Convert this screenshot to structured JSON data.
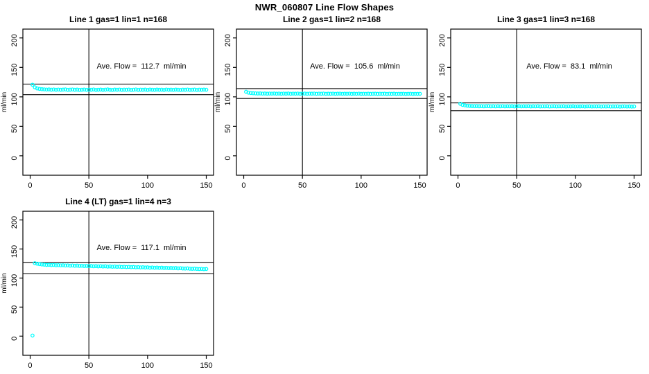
{
  "page_title": "NWR_060807  Line Flow Shapes",
  "axes": {
    "x_ticks": [
      0,
      50,
      100,
      150
    ],
    "y_ticks": [
      0,
      50,
      100,
      150,
      200
    ],
    "ylabel": "ml/min",
    "xlabel": "",
    "x_range": [
      -6.2,
      156.2
    ],
    "y_range": [
      -33,
      215
    ],
    "vline_x": 50,
    "grid": "off"
  },
  "style": {
    "point_color": "#00FFFF",
    "axis_color": "#000000",
    "background": "#FFFFFF"
  },
  "chart_data": [
    {
      "type": "scatter",
      "title": "Line 1 gas=1 lin=1 n=168",
      "annotation": "Ave. Flow =  112.7  ml/min",
      "ave_flow_ml_min": 112.7,
      "n": 168,
      "ref_lines": [
        121.7,
        103.7
      ],
      "x0": 2,
      "dx": 2,
      "y": [
        120.6,
        116.2,
        114.3,
        113.5,
        113.0,
        112.7,
        112.4,
        112.6,
        112.2,
        112.5,
        112.1,
        112.4,
        112.0,
        112.3,
        112.6,
        111.9,
        112.2,
        112.5,
        112.0,
        112.3,
        111.8,
        112.1,
        112.4,
        111.9,
        112.2,
        112.0,
        112.5,
        111.8,
        112.1,
        112.3,
        111.9,
        112.2,
        112.6,
        112.0,
        111.8,
        112.3,
        112.1,
        112.4,
        111.9,
        112.2,
        112.0,
        112.4,
        111.8,
        112.1,
        112.5,
        111.9,
        112.2,
        112.0,
        112.3,
        111.8,
        112.4,
        112.1,
        111.9,
        112.3,
        112.0,
        112.2,
        111.8,
        112.4,
        112.0,
        112.2,
        111.9,
        112.3,
        112.1,
        111.8,
        112.2,
        112.0,
        112.4,
        111.9,
        112.1,
        112.3,
        111.8,
        112.2,
        112.0,
        112.3,
        112.1
      ],
      "extra_points": []
    },
    {
      "type": "scatter",
      "title": "Line 2 gas=1 lin=2 n=168",
      "annotation": "Ave. Flow =  105.6  ml/min",
      "ave_flow_ml_min": 105.6,
      "n": 168,
      "ref_lines": [
        114.0,
        97.2
      ],
      "x0": 2,
      "dx": 2,
      "y": [
        108.6,
        107.2,
        106.5,
        106.1,
        105.9,
        105.7,
        105.8,
        105.5,
        105.7,
        105.4,
        105.6,
        105.5,
        105.7,
        105.4,
        105.6,
        105.3,
        105.6,
        105.4,
        105.7,
        105.3,
        105.5,
        105.4,
        105.6,
        105.3,
        105.5,
        105.6,
        105.3,
        105.5,
        105.4,
        105.6,
        105.2,
        105.5,
        105.3,
        105.6,
        105.2,
        105.4,
        105.3,
        105.5,
        105.2,
        105.4,
        105.5,
        105.2,
        105.4,
        105.3,
        105.5,
        105.1,
        105.4,
        105.2,
        105.5,
        105.1,
        105.3,
        105.2,
        105.4,
        105.1,
        105.3,
        105.4,
        105.1,
        105.3,
        105.2,
        105.4,
        105.0,
        105.3,
        105.1,
        105.4,
        105.0,
        105.2,
        105.1,
        105.3,
        105.0,
        105.2,
        105.3,
        105.0,
        105.2,
        105.1,
        105.2
      ],
      "extra_points": []
    },
    {
      "type": "scatter",
      "title": "Line 3 gas=1 lin=3 n=168",
      "annotation": "Ave. Flow =  83.1  ml/min",
      "ave_flow_ml_min": 83.1,
      "n": 168,
      "ref_lines": [
        89.7,
        76.5
      ],
      "x0": 2,
      "dx": 2,
      "y": [
        88.2,
        86.3,
        85.4,
        84.9,
        84.6,
        84.4,
        84.2,
        84.4,
        84.1,
        84.3,
        84.0,
        84.2,
        84.4,
        84.0,
        84.2,
        83.9,
        84.2,
        84.0,
        84.3,
        83.9,
        84.1,
        84.0,
        84.2,
        83.8,
        84.1,
        84.2,
        83.9,
        84.1,
        84.0,
        84.2,
        83.8,
        84.1,
        83.9,
        84.2,
        83.8,
        84.0,
        83.9,
        84.1,
        83.7,
        84.0,
        84.1,
        83.8,
        84.0,
        83.9,
        84.1,
        83.7,
        84.0,
        83.8,
        84.1,
        83.7,
        83.9,
        83.8,
        84.0,
        83.6,
        83.9,
        84.0,
        83.7,
        83.9,
        83.8,
        84.0,
        83.6,
        83.9,
        83.7,
        84.0,
        83.6,
        83.8,
        83.7,
        83.9,
        83.5,
        83.8,
        83.9,
        83.6,
        83.8,
        83.5,
        83.7
      ],
      "extra_points": []
    },
    {
      "type": "scatter",
      "title": "Line 4 (LT) gas=1 lin=4 n=3",
      "annotation": "Ave. Flow =  117.1  ml/min",
      "ave_flow_ml_min": 117.1,
      "n": 3,
      "ref_lines": [
        126.5,
        107.7
      ],
      "x0": 4,
      "dx": 2,
      "y": [
        125.6,
        124.7,
        124.0,
        123.4,
        123.0,
        122.6,
        122.8,
        122.3,
        122.5,
        122.0,
        122.2,
        121.8,
        122.0,
        121.6,
        121.8,
        121.3,
        121.6,
        121.1,
        121.4,
        120.9,
        121.2,
        120.7,
        121.0,
        120.5,
        120.8,
        120.3,
        120.6,
        120.1,
        120.4,
        119.9,
        120.2,
        119.7,
        120.0,
        119.5,
        119.8,
        119.3,
        119.6,
        119.1,
        119.4,
        118.9,
        119.2,
        118.7,
        119.0,
        118.5,
        118.8,
        118.3,
        118.6,
        118.1,
        118.4,
        117.9,
        118.2,
        117.7,
        118.0,
        117.5,
        117.8,
        117.3,
        117.6,
        117.1,
        117.4,
        116.9,
        117.2,
        116.7,
        117.0,
        116.5,
        116.3,
        116.6,
        116.1,
        115.9,
        116.2,
        115.7,
        115.5,
        115.8,
        115.3,
        115.6
      ],
      "extra_points": [
        [
          2,
          1.0
        ]
      ]
    }
  ]
}
